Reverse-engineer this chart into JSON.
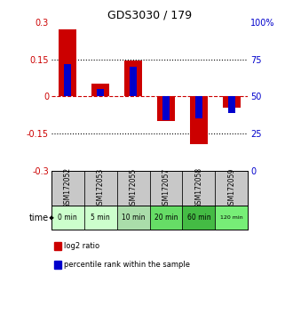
{
  "title": "GDS3030 / 179",
  "samples": [
    "GSM172052",
    "GSM172053",
    "GSM172055",
    "GSM172057",
    "GSM172058",
    "GSM172059"
  ],
  "time_labels": [
    "0 min",
    "5 min",
    "10 min",
    "20 min",
    "60 min",
    "120 min"
  ],
  "log2_ratio": [
    0.27,
    0.05,
    0.145,
    -0.1,
    -0.195,
    -0.045
  ],
  "percentile_rank": [
    72,
    55,
    70,
    34,
    35,
    39
  ],
  "ylim_left": [
    -0.3,
    0.3
  ],
  "ylim_right": [
    0,
    100
  ],
  "yticks_left": [
    -0.3,
    -0.15,
    0,
    0.15,
    0.3
  ],
  "yticks_right": [
    0,
    25,
    50,
    75,
    100
  ],
  "ytick_labels_left": [
    "-0.3",
    "-0.15",
    "0",
    "0.15",
    "0.3"
  ],
  "ytick_labels_right": [
    "0",
    "25",
    "50",
    "75",
    "100%"
  ],
  "bar_color_red": "#cc0000",
  "bar_color_blue": "#0000cc",
  "bg_color": "#ffffff",
  "zero_line_color": "#cc0000",
  "time_bg_colors": [
    "#ccffcc",
    "#ccffcc",
    "#aaddaa",
    "#66dd66",
    "#44bb44",
    "#77ee77"
  ],
  "legend_red_label": "log2 ratio",
  "legend_blue_label": "percentile rank within the sample"
}
